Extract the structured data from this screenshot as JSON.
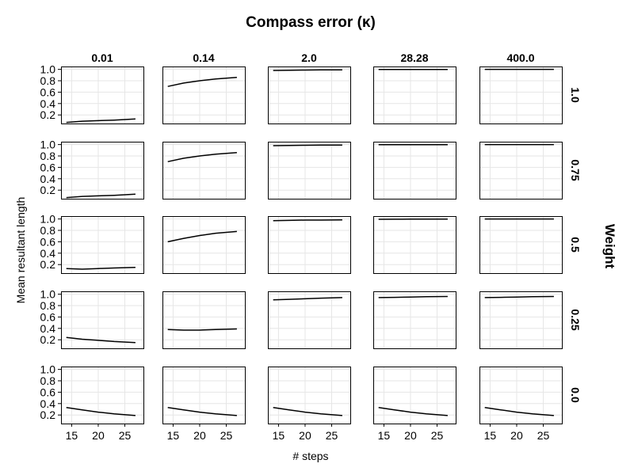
{
  "chart_data": {
    "type": "line",
    "title": "Compass error (κ)",
    "xlabel": "# steps",
    "ylabel": "Mean resultant length",
    "row_facet_label": "Weight",
    "col_labels": [
      "0.01",
      "0.14",
      "2.0",
      "28.28",
      "400.0"
    ],
    "row_labels": [
      "1.0",
      "0.75",
      "0.5",
      "0.25",
      "0.0"
    ],
    "xlim": [
      13,
      28.5
    ],
    "ylim": [
      0.05,
      1.05
    ],
    "xticks": [
      15,
      20,
      25
    ],
    "xtick_labels": [
      "15",
      "20",
      "25"
    ],
    "yticks": [
      0.2,
      0.4,
      0.6,
      0.8,
      1.0
    ],
    "ytick_labels": [
      "0.2",
      "0.4",
      "0.6",
      "0.8",
      "1.0"
    ],
    "x": [
      14,
      17,
      20,
      23,
      27
    ],
    "panels": [
      [
        [
          0.07,
          0.09,
          0.1,
          0.11,
          0.13
        ],
        [
          0.7,
          0.76,
          0.8,
          0.83,
          0.86
        ],
        [
          0.98,
          0.985,
          0.988,
          0.99,
          0.99
        ],
        [
          0.997,
          0.998,
          0.998,
          0.998,
          0.998
        ],
        [
          1.0,
          1.0,
          1.0,
          1.0,
          1.0
        ]
      ],
      [
        [
          0.07,
          0.09,
          0.1,
          0.11,
          0.13
        ],
        [
          0.7,
          0.76,
          0.8,
          0.83,
          0.86
        ],
        [
          0.98,
          0.985,
          0.988,
          0.99,
          0.99
        ],
        [
          0.997,
          0.998,
          0.998,
          0.998,
          0.998
        ],
        [
          1.0,
          1.0,
          1.0,
          1.0,
          1.0
        ]
      ],
      [
        [
          0.13,
          0.12,
          0.13,
          0.14,
          0.15
        ],
        [
          0.6,
          0.66,
          0.71,
          0.75,
          0.78
        ],
        [
          0.97,
          0.975,
          0.98,
          0.98,
          0.985
        ],
        [
          0.995,
          0.996,
          0.997,
          0.997,
          0.997
        ],
        [
          1.0,
          1.0,
          1.0,
          1.0,
          1.0
        ]
      ],
      [
        [
          0.24,
          0.21,
          0.19,
          0.17,
          0.15
        ],
        [
          0.38,
          0.37,
          0.37,
          0.38,
          0.39
        ],
        [
          0.9,
          0.91,
          0.92,
          0.93,
          0.94
        ],
        [
          0.94,
          0.945,
          0.95,
          0.955,
          0.96
        ],
        [
          0.94,
          0.945,
          0.95,
          0.955,
          0.96
        ]
      ],
      [
        [
          0.33,
          0.29,
          0.25,
          0.22,
          0.19
        ],
        [
          0.33,
          0.29,
          0.25,
          0.22,
          0.19
        ],
        [
          0.33,
          0.29,
          0.25,
          0.22,
          0.19
        ],
        [
          0.33,
          0.29,
          0.25,
          0.22,
          0.19
        ],
        [
          0.33,
          0.29,
          0.25,
          0.22,
          0.19
        ]
      ]
    ],
    "grid": true,
    "line_color": "#000000"
  }
}
